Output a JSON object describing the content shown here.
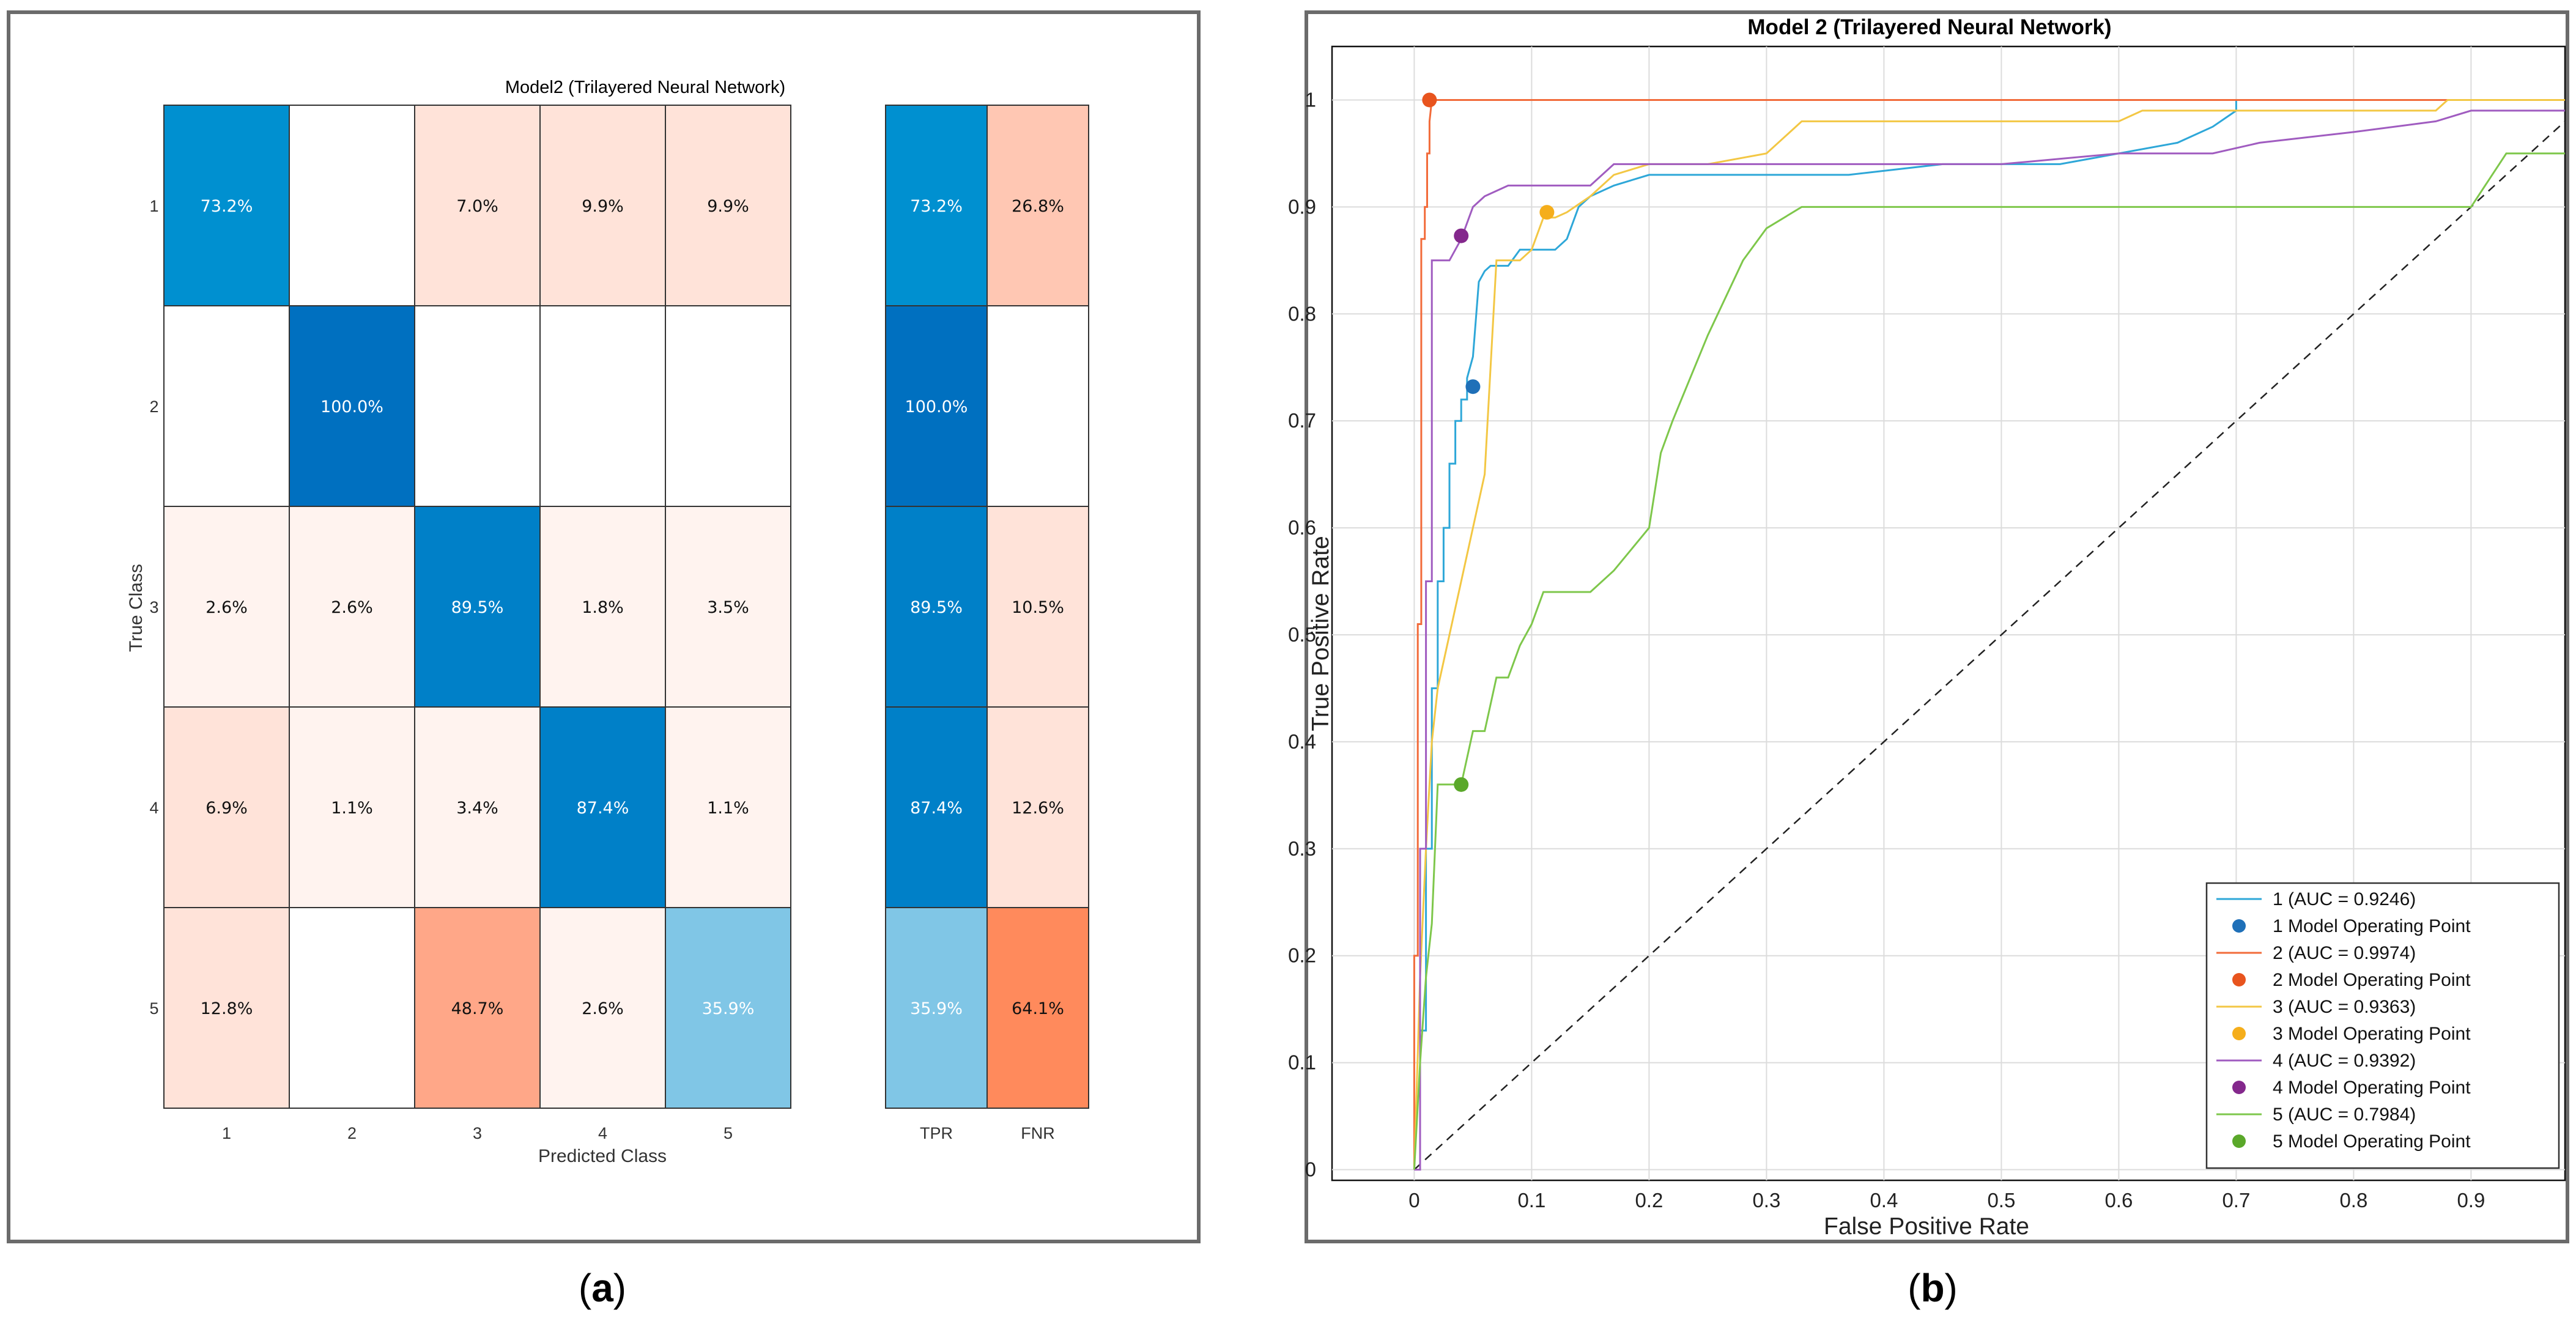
{
  "panels": {
    "a": {
      "label": "(a)",
      "letter": "a"
    },
    "b": {
      "label": "(b)",
      "letter": "b"
    }
  },
  "colors": {
    "blue_deep": "#0070C0",
    "blue": "#0080C8",
    "blue_mid": "#0090D0",
    "blue_light": "#80C6E6",
    "peach_faint": "#FFF3EF",
    "peach_light": "#FFE3D9",
    "peach": "#FFC7B3",
    "salmon": "#FFA788",
    "orange": "#FF8A5C",
    "roc": [
      "#2EA7D8",
      "#F26B3A",
      "#F3C744",
      "#A05CC0",
      "#7EC74B"
    ],
    "markers": [
      "#1F70B8",
      "#E8541E",
      "#F5AE1B",
      "#84288C",
      "#5AA82A"
    ]
  },
  "chart_data": [
    {
      "type": "heatmap",
      "title": "Model2 (Trilayered Neural Network)",
      "xlabel": "Predicted Class",
      "ylabel": "True Class",
      "classes": [
        "1",
        "2",
        "3",
        "4",
        "5"
      ],
      "cells": [
        [
          "73.2%",
          "",
          "7.0%",
          "9.9%",
          "9.9%"
        ],
        [
          "",
          "100.0%",
          "",
          "",
          ""
        ],
        [
          "2.6%",
          "2.6%",
          "89.5%",
          "1.8%",
          "3.5%"
        ],
        [
          "6.9%",
          "1.1%",
          "3.4%",
          "87.4%",
          "1.1%"
        ],
        [
          "12.8%",
          "",
          "48.7%",
          "2.6%",
          "35.9%"
        ]
      ],
      "summary_columns": [
        "TPR",
        "FNR"
      ],
      "summary": [
        [
          "73.2%",
          "26.8%"
        ],
        [
          "100.0%",
          ""
        ],
        [
          "89.5%",
          "10.5%"
        ],
        [
          "87.4%",
          "12.6%"
        ],
        [
          "35.9%",
          "64.1%"
        ]
      ]
    },
    {
      "type": "line",
      "title": "Model 2 (Trilayered Neural Network)",
      "xlabel": "False Positive Rate",
      "ylabel": "True Positive Rate",
      "xlim": [
        -0.07,
        0.98
      ],
      "ylim": [
        -0.01,
        1.05
      ],
      "xticks": [
        "0",
        "0.1",
        "0.2",
        "0.3",
        "0.4",
        "0.5",
        "0.6",
        "0.7",
        "0.8",
        "0.9"
      ],
      "yticks": [
        "0",
        "0.1",
        "0.2",
        "0.3",
        "0.4",
        "0.5",
        "0.6",
        "0.7",
        "0.8",
        "0.9",
        "1"
      ],
      "grid": true,
      "legend_position": "bottom-right",
      "series": [
        {
          "name": "1 (AUC = 0.9246)",
          "op_name": "1 Model Operating Point",
          "op": [
            0.05,
            0.732
          ],
          "x": [
            0,
            0.005,
            0.005,
            0.01,
            0.01,
            0.015,
            0.015,
            0.02,
            0.02,
            0.025,
            0.025,
            0.03,
            0.03,
            0.035,
            0.035,
            0.04,
            0.04,
            0.045,
            0.045,
            0.05,
            0.055,
            0.06,
            0.065,
            0.07,
            0.08,
            0.09,
            0.1,
            0.12,
            0.13,
            0.14,
            0.15,
            0.17,
            0.2,
            0.3,
            0.37,
            0.45,
            0.55,
            0.6,
            0.65,
            0.68,
            0.7,
            0.7
          ],
          "y": [
            0,
            0,
            0.13,
            0.13,
            0.3,
            0.3,
            0.45,
            0.45,
            0.55,
            0.55,
            0.6,
            0.6,
            0.66,
            0.66,
            0.7,
            0.7,
            0.72,
            0.72,
            0.74,
            0.76,
            0.83,
            0.84,
            0.845,
            0.845,
            0.845,
            0.86,
            0.86,
            0.86,
            0.87,
            0.9,
            0.91,
            0.92,
            0.93,
            0.93,
            0.93,
            0.94,
            0.94,
            0.95,
            0.96,
            0.975,
            0.99,
            1
          ]
        },
        {
          "name": "2 (AUC = 0.9974)",
          "op_name": "2 Model Operating Point",
          "op": [
            0.013,
            1.0
          ],
          "x": [
            0,
            0,
            0.003,
            0.003,
            0.006,
            0.006,
            0.009,
            0.009,
            0.011,
            0.011,
            0.013,
            0.013,
            0.015,
            0.98
          ],
          "y": [
            0,
            0.2,
            0.2,
            0.51,
            0.51,
            0.87,
            0.87,
            0.9,
            0.9,
            0.95,
            0.95,
            0.98,
            1,
            1
          ]
        },
        {
          "name": "3 (AUC = 0.9363)",
          "op_name": "3 Model Operating Point",
          "op": [
            0.113,
            0.895
          ],
          "x": [
            0,
            0.005,
            0.01,
            0.015,
            0.02,
            0.03,
            0.04,
            0.05,
            0.06,
            0.065,
            0.07,
            0.09,
            0.1,
            0.11,
            0.12,
            0.13,
            0.15,
            0.17,
            0.2,
            0.25,
            0.3,
            0.33,
            0.5,
            0.6,
            0.62,
            0.7,
            0.75,
            0.87,
            0.88,
            0.98
          ],
          "y": [
            0,
            0.18,
            0.3,
            0.4,
            0.45,
            0.5,
            0.55,
            0.6,
            0.65,
            0.75,
            0.85,
            0.85,
            0.86,
            0.89,
            0.89,
            0.895,
            0.91,
            0.93,
            0.94,
            0.94,
            0.95,
            0.98,
            0.98,
            0.98,
            0.99,
            0.99,
            0.99,
            0.99,
            1,
            1
          ]
        },
        {
          "name": "4 (AUC = 0.9392)",
          "op_name": "4 Model Operating Point",
          "op": [
            0.04,
            0.873
          ],
          "x": [
            0,
            0.005,
            0.005,
            0.01,
            0.01,
            0.015,
            0.015,
            0.03,
            0.04,
            0.05,
            0.06,
            0.08,
            0.1,
            0.15,
            0.17,
            0.3,
            0.5,
            0.6,
            0.68,
            0.72,
            0.8,
            0.87,
            0.9,
            0.98
          ],
          "y": [
            0,
            0,
            0.3,
            0.3,
            0.55,
            0.55,
            0.85,
            0.85,
            0.87,
            0.9,
            0.91,
            0.92,
            0.92,
            0.92,
            0.94,
            0.94,
            0.94,
            0.95,
            0.95,
            0.96,
            0.97,
            0.98,
            0.99,
            0.99
          ]
        },
        {
          "name": "5 (AUC = 0.7984)",
          "op_name": "5 Model Operating Point",
          "op": [
            0.04,
            0.36
          ],
          "x": [
            0,
            0.005,
            0.01,
            0.015,
            0.02,
            0.025,
            0.03,
            0.04,
            0.05,
            0.06,
            0.07,
            0.08,
            0.09,
            0.1,
            0.11,
            0.13,
            0.15,
            0.17,
            0.2,
            0.21,
            0.22,
            0.25,
            0.28,
            0.3,
            0.33,
            0.5,
            0.7,
            0.9,
            0.93,
            0.96,
            0.98
          ],
          "y": [
            0,
            0.1,
            0.18,
            0.23,
            0.36,
            0.36,
            0.36,
            0.36,
            0.41,
            0.41,
            0.46,
            0.46,
            0.49,
            0.51,
            0.54,
            0.54,
            0.54,
            0.56,
            0.6,
            0.67,
            0.7,
            0.78,
            0.85,
            0.88,
            0.9,
            0.9,
            0.9,
            0.9,
            0.95,
            0.95,
            0.95
          ]
        }
      ]
    }
  ]
}
